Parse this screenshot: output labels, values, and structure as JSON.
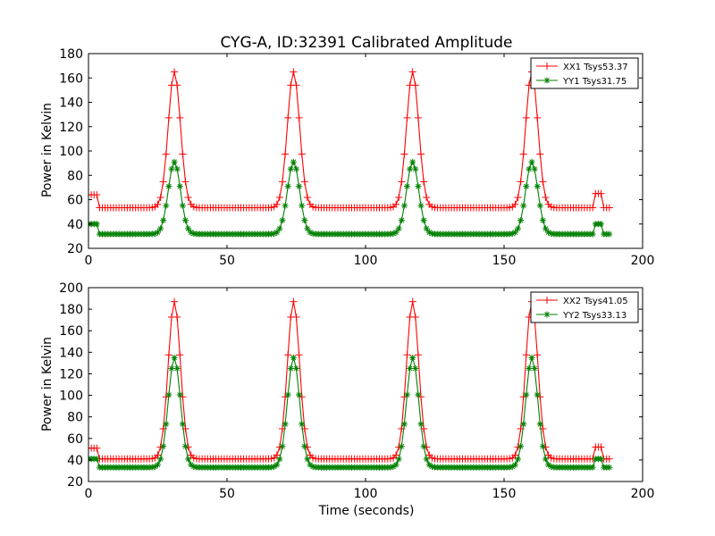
{
  "figure": {
    "title": "CYG-A, ID:32391 Calibrated Amplitude"
  },
  "chart_data": [
    {
      "type": "line",
      "title": "CYG-A, ID:32391 Calibrated Amplitude",
      "xlabel": "",
      "ylabel": "Power in Kelvin",
      "xlim": [
        0,
        200
      ],
      "ylim": [
        20,
        180
      ],
      "xticks": [
        0,
        50,
        100,
        150,
        200
      ],
      "yticks": [
        20,
        40,
        60,
        80,
        100,
        120,
        140,
        160,
        180
      ],
      "legend_position": "top-right",
      "grid": false,
      "series": [
        {
          "name": "XX1 Tsys53.37",
          "color": "#ff0000",
          "marker": "+",
          "baseline": 53.4,
          "peak": 165,
          "peak_times": [
            31,
            74,
            117,
            160
          ],
          "peak_width": 2.2,
          "x_range": [
            0,
            188
          ],
          "step": 1,
          "segments": [
            {
              "x0": 0,
              "x1": 3,
              "value": 64
            },
            {
              "x0": 183,
              "x1": 185,
              "value": 65
            }
          ]
        },
        {
          "name": "YY1 Tsys31.75",
          "color": "#008000",
          "marker": "*",
          "baseline": 31.7,
          "peak": 91,
          "peak_times": [
            31,
            74,
            117,
            160
          ],
          "peak_width": 2.2,
          "x_range": [
            0,
            188
          ],
          "step": 1,
          "segments": [
            {
              "x0": 0,
              "x1": 3,
              "value": 40
            },
            {
              "x0": 183,
              "x1": 185,
              "value": 40
            }
          ]
        }
      ]
    },
    {
      "type": "line",
      "title": "",
      "xlabel": "Time (seconds)",
      "ylabel": "Power in Kelvin",
      "xlim": [
        0,
        200
      ],
      "ylim": [
        20,
        200
      ],
      "xticks": [
        0,
        50,
        100,
        150,
        200
      ],
      "yticks": [
        20,
        40,
        60,
        80,
        100,
        120,
        140,
        160,
        180,
        200
      ],
      "legend_position": "top-right",
      "grid": false,
      "series": [
        {
          "name": "XX2 Tsys41.05",
          "color": "#ff0000",
          "marker": "+",
          "baseline": 41.0,
          "peak": 187,
          "peak_times": [
            31,
            74,
            117,
            160
          ],
          "peak_width": 2.2,
          "x_range": [
            0,
            188
          ],
          "step": 1,
          "segments": [
            {
              "x0": 0,
              "x1": 3,
              "value": 51
            },
            {
              "x0": 183,
              "x1": 185,
              "value": 52
            }
          ]
        },
        {
          "name": "YY2 Tsys33.13",
          "color": "#008000",
          "marker": "*",
          "baseline": 33.1,
          "peak": 135,
          "peak_times": [
            31,
            74,
            117,
            160
          ],
          "peak_width": 2.2,
          "x_range": [
            0,
            188
          ],
          "step": 1,
          "segments": [
            {
              "x0": 0,
              "x1": 3,
              "value": 41
            },
            {
              "x0": 183,
              "x1": 185,
              "value": 41
            }
          ]
        }
      ]
    }
  ]
}
